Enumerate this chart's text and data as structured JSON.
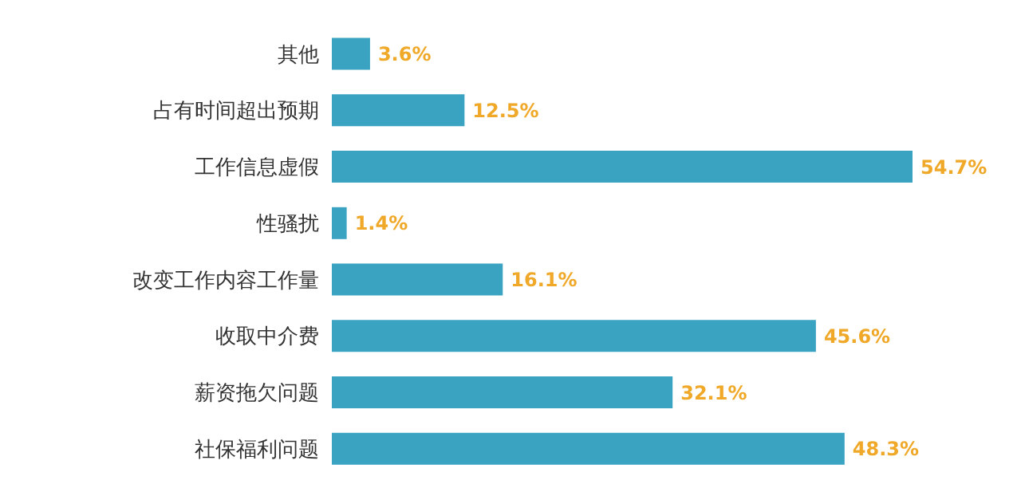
{
  "chart_data": {
    "type": "bar",
    "orientation": "horizontal",
    "categories": [
      "其他",
      "占有时间超出预期",
      "工作信息虚假",
      "性骚扰",
      "改变工作内容工作量",
      "收取中介费",
      "薪资拖欠问题",
      "社保福利问题"
    ],
    "values": [
      3.6,
      12.5,
      54.7,
      1.4,
      16.1,
      45.6,
      32.1,
      48.3
    ],
    "value_labels": [
      "3.6%",
      "12.5%",
      "54.7%",
      "1.4%",
      "16.1%",
      "45.6%",
      "32.1%",
      "48.3%"
    ],
    "color": "#3aa3c2",
    "grid": false,
    "legend": false
  }
}
